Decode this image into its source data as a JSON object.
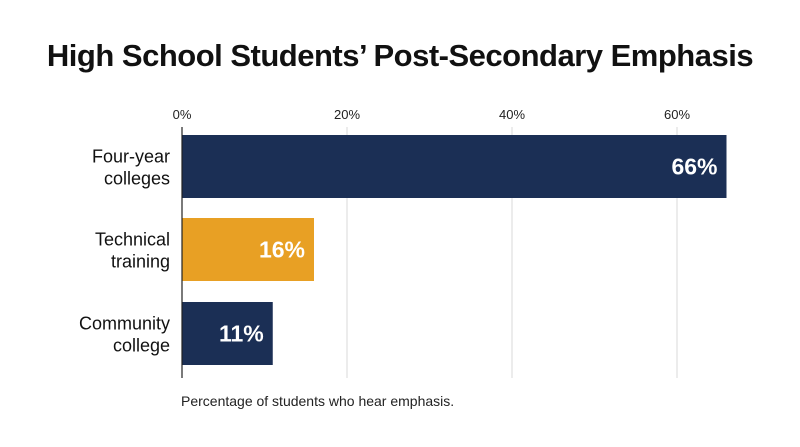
{
  "chart_data": {
    "type": "bar",
    "orientation": "horizontal",
    "title": "High School Students’ Post-Secondary Emphasis",
    "xlabel": "Percentage of students who hear emphasis.",
    "ylabel": "",
    "categories": [
      [
        "Four-year",
        "colleges"
      ],
      [
        "Technical",
        "training"
      ],
      [
        "Community",
        "college"
      ]
    ],
    "values": [
      66,
      16,
      11
    ],
    "data_labels": [
      "66%",
      "16%",
      "11%"
    ],
    "colors": [
      "#1b2f55",
      "#e8a024",
      "#1b2f55"
    ],
    "xlim": [
      0,
      66
    ],
    "xticks": [
      0,
      20,
      40,
      60
    ],
    "xtick_labels": [
      "0%",
      "20%",
      "40%",
      "60%"
    ],
    "tick_position": "top",
    "grid": true,
    "legend": "none"
  }
}
